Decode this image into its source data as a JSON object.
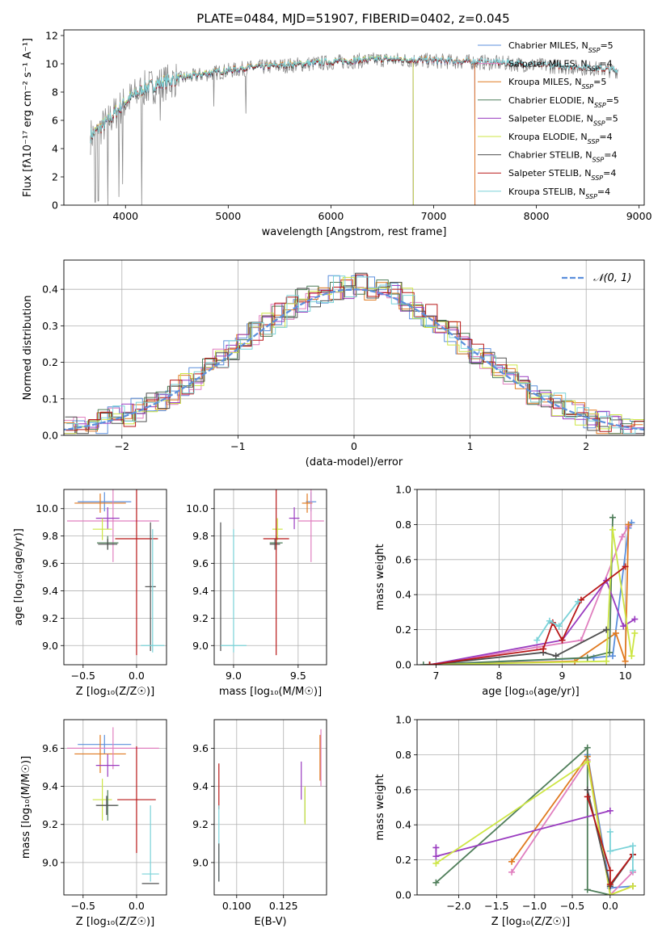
{
  "title": "PLATE=0484, MJD=51907, FIBERID=0402, z=0.045",
  "colors": {
    "Chabrier MILES": "#5b8fdc",
    "Salpeter MILES": "#e07fbf",
    "Kroupa MILES": "#e07a20",
    "Chabrier ELODIE": "#4f7e5a",
    "Salpeter ELODIE": "#9a3cc0",
    "Kroupa ELODIE": "#cde645",
    "Chabrier STELIB": "#505050",
    "Salpeter STELIB": "#b81818",
    "Kroupa STELIB": "#7ad2d8",
    "data": "#8a8a8a",
    "normal": "#5b8fdc"
  },
  "chart_data": [
    {
      "id": "spectrum",
      "type": "line",
      "title": "PLATE=0484, MJD=51907, FIBERID=0402, z=0.045",
      "xlabel": "wavelength [Angstrom, rest frame]",
      "ylabel": "Flux [fλ10⁻¹⁷ erg cm⁻² s⁻¹ A⁻¹]",
      "xlim": [
        3400,
        9050
      ],
      "ylim": [
        0,
        12.4
      ],
      "xticks": [
        "4000",
        "5000",
        "6000",
        "7000",
        "8000",
        "9000"
      ],
      "yticks": [
        "0",
        "2",
        "4",
        "6",
        "8",
        "10",
        "12"
      ],
      "legend_position": "top-right",
      "legend": [
        "Chabrier MILES, N_SSP=5",
        "Salpeter MILES, N_SSP=4",
        "Kroupa MILES, N_SSP=5",
        "Chabrier ELODIE, N_SSP=5",
        "Salpeter ELODIE, N_SSP=5",
        "Kroupa ELODIE, N_SSP=4",
        "Chabrier STELIB, N_SSP=4",
        "Salpeter STELIB, N_SSP=4",
        "Kroupa STELIB, N_SSP=4"
      ],
      "continuum": {
        "x": [
          3650,
          3800,
          4000,
          4200,
          4500,
          4800,
          5200,
          5600,
          6000,
          6500,
          7000,
          7500,
          8000,
          8500,
          8800
        ],
        "y": [
          4.8,
          5.7,
          7.3,
          8.3,
          8.9,
          9.3,
          9.7,
          9.9,
          10.1,
          10.3,
          10.2,
          10.1,
          9.9,
          9.7,
          9.5
        ]
      },
      "series_end_x": {
        "Chabrier MILES": 7400,
        "Salpeter MILES": 7400,
        "Kroupa MILES": 7400,
        "Chabrier ELODIE": 6800,
        "Salpeter ELODIE": 6800,
        "Kroupa ELODIE": 6800,
        "Chabrier STELIB": 8800,
        "Salpeter STELIB": 8800,
        "Kroupa STELIB": 8800
      },
      "grid": false
    },
    {
      "id": "residuals",
      "type": "line",
      "xlabel": "(data-model)/error",
      "ylabel": "Normed distribution",
      "xlim": [
        -2.5,
        2.5
      ],
      "ylim": [
        0,
        0.48
      ],
      "xticks": [
        "−2",
        "−1",
        "0",
        "1",
        "2"
      ],
      "yticks": [
        "0.0",
        "0.1",
        "0.2",
        "0.3",
        "0.4"
      ],
      "legend": [
        "𝒩(0, 1)"
      ],
      "legend_position": "top-right",
      "bin_width": 0.1,
      "peak": 0.41,
      "sigma": 0.98,
      "grid": true
    },
    {
      "id": "age-vs-Z",
      "type": "scatter",
      "xlabel": "Z [log₁₀(Z/Z☉)]",
      "ylabel": "age  [log₁₀(age/yr)]",
      "xlim": [
        -0.68,
        0.28
      ],
      "ylim": [
        8.86,
        10.14
      ],
      "xticks": [
        "−0.5",
        "0.0"
      ],
      "yticks": [
        "9.0",
        "9.2",
        "9.4",
        "9.6",
        "9.8",
        "10.0"
      ],
      "points": [
        {
          "model": "Chabrier MILES",
          "x": -0.3,
          "xerr": 0.25,
          "y": 10.05,
          "yerr": 0.07
        },
        {
          "model": "Kroupa MILES",
          "x": -0.34,
          "xerr": 0.24,
          "y": 10.04,
          "yerr": 0.07
        },
        {
          "model": "Salpeter MILES",
          "x": -0.22,
          "xerr": 0.43,
          "y": 9.91,
          "yerr": 0.3
        },
        {
          "model": "Salpeter ELODIE",
          "x": -0.27,
          "xerr": 0.11,
          "y": 9.93,
          "yerr": 0.08
        },
        {
          "model": "Kroupa ELODIE",
          "x": -0.32,
          "xerr": 0.09,
          "y": 9.85,
          "yerr": 0.08
        },
        {
          "model": "Chabrier ELODIE",
          "x": -0.27,
          "xerr": 0.1,
          "y": 9.75,
          "yerr": 0.05
        },
        {
          "model": "Chabrier STELIB",
          "x": -0.27,
          "xerr": 0.09,
          "y": 9.74,
          "yerr": 0.04
        },
        {
          "model": "Salpeter STELIB",
          "x": 0.0,
          "xerr": 0.2,
          "y": 9.78,
          "yerr": 0.85
        },
        {
          "model": "Chabrier STELIB",
          "x": 0.13,
          "xerr": 0.05,
          "y": 9.43,
          "yerr": 0.47
        },
        {
          "model": "Kroupa STELIB",
          "x": 0.15,
          "xerr": 0.11,
          "y": 9.0,
          "yerr": 0.0
        },
        {
          "model": "Kroupa STELIB",
          "x": 0.15,
          "xerr": 0.0,
          "y": 9.4,
          "yerr": 0.45
        }
      ],
      "grid": true
    },
    {
      "id": "age-vs-mass",
      "type": "scatter",
      "xlabel": "mass [log₁₀(M/M☉)]",
      "ylabel": "",
      "xlim": [
        8.85,
        9.72
      ],
      "ylim": [
        8.86,
        10.14
      ],
      "xticks": [
        "9.0",
        "9.5"
      ],
      "yticks": [
        "9.0",
        "9.2",
        "9.4",
        "9.6",
        "9.8",
        "10.0"
      ],
      "points": [
        {
          "model": "Chabrier MILES",
          "x": 9.6,
          "xerr": 0.04,
          "y": 10.05,
          "yerr": 0.07
        },
        {
          "model": "Kroupa MILES",
          "x": 9.57,
          "xerr": 0.04,
          "y": 10.04,
          "yerr": 0.07
        },
        {
          "model": "Salpeter MILES",
          "x": 9.6,
          "xerr": 0.1,
          "y": 9.91,
          "yerr": 0.3
        },
        {
          "model": "Salpeter ELODIE",
          "x": 9.47,
          "xerr": 0.04,
          "y": 9.93,
          "yerr": 0.08
        },
        {
          "model": "Kroupa ELODIE",
          "x": 9.34,
          "xerr": 0.04,
          "y": 9.85,
          "yerr": 0.08
        },
        {
          "model": "Chabrier ELODIE",
          "x": 9.33,
          "xerr": 0.05,
          "y": 9.75,
          "yerr": 0.05
        },
        {
          "model": "Chabrier STELIB",
          "x": 9.32,
          "xerr": 0.04,
          "y": 9.74,
          "yerr": 0.04
        },
        {
          "model": "Salpeter STELIB",
          "x": 9.33,
          "xerr": 0.1,
          "y": 9.78,
          "yerr": 0.85
        },
        {
          "model": "Chabrier STELIB",
          "x": 8.9,
          "xerr": 0.0,
          "y": 9.43,
          "yerr": 0.47
        },
        {
          "model": "Kroupa STELIB",
          "x": 9.0,
          "xerr": 0.0,
          "y": 9.4,
          "yerr": 0.45
        },
        {
          "model": "Kroupa STELIB",
          "x": 9.0,
          "xerr": 0.1,
          "y": 9.0,
          "yerr": 0.0
        }
      ],
      "grid": true
    },
    {
      "id": "weight-vs-age",
      "type": "line",
      "xlabel": "age  [log₁₀(age/yr)]",
      "ylabel": "mass weight",
      "xlim": [
        6.7,
        10.3
      ],
      "ylim": [
        0,
        1.0
      ],
      "xticks": [
        "7",
        "8",
        "9",
        "10"
      ],
      "yticks": [
        "0.0",
        "0.2",
        "0.4",
        "0.6",
        "0.8",
        "1.0"
      ],
      "series": [
        {
          "model": "Chabrier MILES",
          "x": [
            6.9,
            9.5,
            9.8,
            10.05,
            10.1
          ],
          "y": [
            0.0,
            0.04,
            0.05,
            0.78,
            0.81
          ]
        },
        {
          "model": "Salpeter MILES",
          "x": [
            6.9,
            8.6,
            9.3,
            9.95,
            10.05
          ],
          "y": [
            0.0,
            0.1,
            0.14,
            0.73,
            0.79
          ]
        },
        {
          "model": "Kroupa MILES",
          "x": [
            6.9,
            9.2,
            9.85,
            10.0,
            10.05
          ],
          "y": [
            0.0,
            0.02,
            0.18,
            0.02,
            0.8
          ]
        },
        {
          "model": "Chabrier ELODIE",
          "x": [
            6.8,
            9.4,
            9.75,
            9.8
          ],
          "y": [
            0.0,
            0.04,
            0.07,
            0.84
          ]
        },
        {
          "model": "Salpeter ELODIE",
          "x": [
            6.9,
            9.0,
            9.7,
            9.97,
            10.15
          ],
          "y": [
            0.0,
            0.14,
            0.48,
            0.22,
            0.26
          ]
        },
        {
          "model": "Kroupa ELODIE",
          "x": [
            6.9,
            9.7,
            9.8,
            10.1,
            10.15
          ],
          "y": [
            0.0,
            0.02,
            0.77,
            0.05,
            0.18
          ]
        },
        {
          "model": "Chabrier STELIB",
          "x": [
            6.9,
            8.7,
            8.9,
            9.7
          ],
          "y": [
            0.0,
            0.07,
            0.05,
            0.2
          ]
        },
        {
          "model": "Salpeter STELIB",
          "x": [
            6.9,
            8.7,
            8.85,
            9.0,
            9.3,
            10.0
          ],
          "y": [
            0.0,
            0.09,
            0.24,
            0.14,
            0.37,
            0.56
          ]
        },
        {
          "model": "Kroupa STELIB",
          "x": [
            8.6,
            8.8,
            8.95,
            9.25
          ],
          "y": [
            0.14,
            0.25,
            0.22,
            0.36
          ]
        }
      ],
      "grid": true
    },
    {
      "id": "mass-vs-Z",
      "type": "scatter",
      "xlabel": "Z [log₁₀(Z/Z☉)]",
      "ylabel": "mass [log₁₀(M/M☉)]",
      "xlim": [
        -0.68,
        0.28
      ],
      "ylim": [
        8.83,
        9.75
      ],
      "xticks": [
        "−0.5",
        "0.0"
      ],
      "yticks": [
        "9.0",
        "9.2",
        "9.4",
        "9.6"
      ],
      "points": [
        {
          "model": "Chabrier MILES",
          "x": -0.3,
          "xerr": 0.25,
          "y": 9.62,
          "yerr": 0.05
        },
        {
          "model": "Kroupa MILES",
          "x": -0.34,
          "xerr": 0.24,
          "y": 9.57,
          "yerr": 0.1
        },
        {
          "model": "Salpeter MILES",
          "x": -0.22,
          "xerr": 0.43,
          "y": 9.6,
          "yerr": 0.11
        },
        {
          "model": "Salpeter ELODIE",
          "x": -0.27,
          "xerr": 0.11,
          "y": 9.51,
          "yerr": 0.06
        },
        {
          "model": "Kroupa ELODIE",
          "x": -0.32,
          "xerr": 0.09,
          "y": 9.33,
          "yerr": 0.11
        },
        {
          "model": "Chabrier ELODIE",
          "x": -0.27,
          "xerr": 0.1,
          "y": 9.3,
          "yerr": 0.08
        },
        {
          "model": "Chabrier STELIB",
          "x": -0.28,
          "xerr": 0.1,
          "y": 9.3,
          "yerr": 0.05
        },
        {
          "model": "Salpeter STELIB",
          "x": 0.0,
          "xerr": 0.18,
          "y": 9.33,
          "yerr": 0.28
        },
        {
          "model": "Kroupa STELIB",
          "x": 0.13,
          "xerr": 0.08,
          "y": 8.94,
          "yerr": 0.0
        },
        {
          "model": "Kroupa STELIB",
          "x": 0.13,
          "xerr": 0.0,
          "y": 9.1,
          "yerr": 0.2
        },
        {
          "model": "Chabrier STELIB",
          "x": 0.13,
          "xerr": 0.08,
          "y": 8.89,
          "yerr": 0.0
        }
      ],
      "grid": true
    },
    {
      "id": "mass-vs-ebv",
      "type": "scatter",
      "xlabel": "E(B-V)",
      "ylabel": "",
      "xlim": [
        0.088,
        0.148
      ],
      "ylim": [
        8.83,
        9.75
      ],
      "xticks": [
        "0.100",
        "0.125"
      ],
      "yticks": [
        "9.0",
        "9.2",
        "9.4",
        "9.6"
      ],
      "points": [
        {
          "model": "Salpeter STELIB",
          "x": 0.0905,
          "xerr": 0,
          "y": 9.4,
          "yerr": 0.12
        },
        {
          "model": "Kroupa STELIB",
          "x": 0.0905,
          "xerr": 0,
          "y": 9.1,
          "yerr": 0.2
        },
        {
          "model": "Chabrier STELIB",
          "x": 0.0905,
          "xerr": 0,
          "y": 9.0,
          "yerr": 0.1
        },
        {
          "model": "Salpeter ELODIE",
          "x": 0.1345,
          "xerr": 0,
          "y": 9.43,
          "yerr": 0.1
        },
        {
          "model": "Chabrier ELODIE",
          "x": 0.1365,
          "xerr": 0,
          "y": 9.3,
          "yerr": 0.09
        },
        {
          "model": "Kroupa ELODIE",
          "x": 0.1365,
          "xerr": 0,
          "y": 9.3,
          "yerr": 0.1
        },
        {
          "model": "Salpeter MILES",
          "x": 0.145,
          "xerr": 0,
          "y": 9.55,
          "yerr": 0.15
        },
        {
          "model": "Kroupa MILES",
          "x": 0.1445,
          "xerr": 0,
          "y": 9.55,
          "yerr": 0.12
        }
      ],
      "grid": true
    },
    {
      "id": "weight-vs-Z",
      "type": "line",
      "xlabel": "Z [log₁₀(Z/Z☉)]",
      "ylabel": "mass weight",
      "xlim": [
        -2.55,
        0.45
      ],
      "ylim": [
        0,
        1.0
      ],
      "xticks": [
        "−2.0",
        "−1.5",
        "−1.0",
        "−0.5",
        "0.0"
      ],
      "yticks": [
        "0.0",
        "0.2",
        "0.4",
        "0.6",
        "0.8",
        "1.0"
      ],
      "series": [
        {
          "model": "Chabrier MILES",
          "x": [
            -0.3,
            0.0,
            0.3
          ],
          "y": [
            0.8,
            0.04,
            0.05
          ]
        },
        {
          "model": "Salpeter MILES",
          "x": [
            -1.3,
            -0.3,
            0.0,
            0.3
          ],
          "y": [
            0.13,
            0.77,
            0.0,
            0.13
          ]
        },
        {
          "model": "Kroupa MILES",
          "x": [
            -1.3,
            -0.3,
            0.0,
            0.3
          ],
          "y": [
            0.19,
            0.79,
            0.0,
            0.05
          ]
        },
        {
          "model": "Chabrier ELODIE",
          "x": [
            -2.3,
            -0.3,
            -0.3,
            0.0
          ],
          "y": [
            0.07,
            0.84,
            0.03,
            0.0
          ]
        },
        {
          "model": "Salpeter ELODIE",
          "x": [
            -2.3,
            -2.3,
            0.0
          ],
          "y": [
            0.27,
            0.22,
            0.48
          ]
        },
        {
          "model": "Kroupa ELODIE",
          "x": [
            -2.3,
            -0.3,
            0.0,
            0.3
          ],
          "y": [
            0.18,
            0.76,
            0.0,
            0.05
          ]
        },
        {
          "model": "Chabrier STELIB",
          "x": [
            -0.3,
            0.0,
            0.3
          ],
          "y": [
            0.6,
            0.05,
            0.23
          ]
        },
        {
          "model": "Salpeter STELIB",
          "x": [
            -0.3,
            0.0,
            0.0,
            0.3
          ],
          "y": [
            0.56,
            0.14,
            0.06,
            0.23
          ]
        },
        {
          "model": "Kroupa STELIB",
          "x": [
            0.0,
            0.0,
            0.3,
            0.3
          ],
          "y": [
            0.36,
            0.25,
            0.28,
            0.14
          ]
        }
      ],
      "grid": true
    }
  ]
}
